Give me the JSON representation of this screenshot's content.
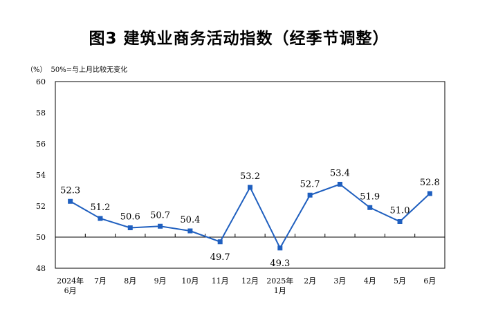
{
  "title": "图3 建筑业商务活动指数（经季节调整）",
  "unit": "（%）",
  "note": "50%=与上月比较无变化",
  "colors": {
    "series": "#1f5fbf",
    "axis": "#000000",
    "frame": "#000000"
  },
  "chart_data": {
    "type": "line",
    "title": "图3 建筑业商务活动指数（经季节调整）",
    "ylabel": "（%）",
    "ylim": [
      48,
      60
    ],
    "yticks": [
      48,
      50,
      52,
      54,
      56,
      58,
      60
    ],
    "reference_line": 50,
    "grid": false,
    "legend": "none",
    "categories": [
      [
        "2024年",
        "6月"
      ],
      [
        "7月"
      ],
      [
        "8月"
      ],
      [
        "9月"
      ],
      [
        "10月"
      ],
      [
        "11月"
      ],
      [
        "12月"
      ],
      [
        "2025年",
        "1月"
      ],
      [
        "2月"
      ],
      [
        "3月"
      ],
      [
        "4月"
      ],
      [
        "5月"
      ],
      [
        "6月"
      ]
    ],
    "values": [
      52.3,
      51.2,
      50.6,
      50.7,
      50.4,
      49.7,
      53.2,
      49.3,
      52.7,
      53.4,
      51.9,
      51.0,
      52.8
    ],
    "labels": [
      "52.3",
      "51.2",
      "50.6",
      "50.7",
      "50.4",
      "49.7",
      "53.2",
      "49.3",
      "52.7",
      "53.4",
      "51.9",
      "51.0",
      "52.8"
    ],
    "label_positions": [
      "above",
      "above",
      "above",
      "above",
      "above",
      "below",
      "above",
      "below",
      "above",
      "above",
      "above",
      "above",
      "above"
    ]
  }
}
